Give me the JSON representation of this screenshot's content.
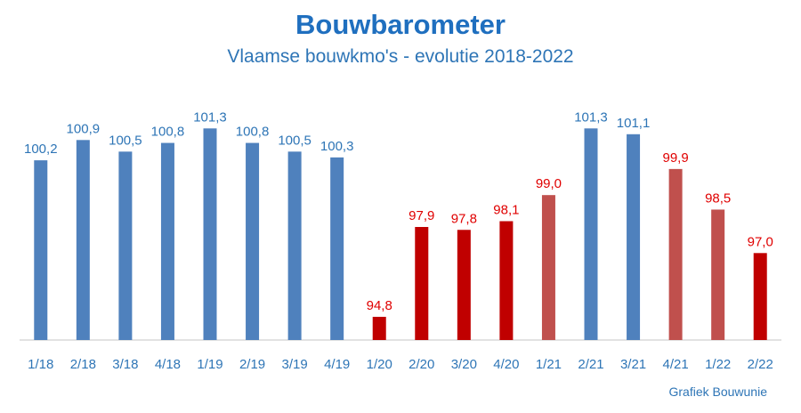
{
  "chart_data": {
    "type": "bar",
    "title": "Bouwbarometer",
    "subtitle": "Vlaamse bouwkmo's - evolutie 2018-2022",
    "categories": [
      "1/18",
      "2/18",
      "3/18",
      "4/18",
      "1/19",
      "2/19",
      "3/19",
      "4/19",
      "1/20",
      "2/20",
      "3/20",
      "4/20",
      "1/21",
      "2/21",
      "3/21",
      "4/21",
      "1/22",
      "2/22"
    ],
    "values": [
      100.2,
      100.9,
      100.5,
      100.8,
      101.3,
      100.8,
      100.5,
      100.3,
      94.8,
      97.9,
      97.8,
      98.1,
      99.0,
      101.3,
      101.1,
      99.9,
      98.5,
      97.0
    ],
    "data_labels": [
      "100,2",
      "100,9",
      "100,5",
      "100,8",
      "101,3",
      "100,8",
      "100,5",
      "100,3",
      "94,8",
      "97,9",
      "97,8",
      "98,1",
      "99,0",
      "101,3",
      "101,1",
      "99,9",
      "98,5",
      "97,0"
    ],
    "bar_colors": [
      "#4f81bd",
      "#4f81bd",
      "#4f81bd",
      "#4f81bd",
      "#4f81bd",
      "#4f81bd",
      "#4f81bd",
      "#4f81bd",
      "#c00000",
      "#c00000",
      "#c00000",
      "#c00000",
      "#c0504d",
      "#4f81bd",
      "#4f81bd",
      "#c0504d",
      "#c0504d",
      "#c00000"
    ],
    "label_colors": [
      "#2e75b6",
      "#2e75b6",
      "#2e75b6",
      "#2e75b6",
      "#2e75b6",
      "#2e75b6",
      "#2e75b6",
      "#2e75b6",
      "#e00000",
      "#e00000",
      "#e00000",
      "#e00000",
      "#e00000",
      "#2e75b6",
      "#2e75b6",
      "#e00000",
      "#e00000",
      "#e00000"
    ],
    "ylim": [
      94.0,
      101.8
    ],
    "grid": false,
    "legend": "none"
  },
  "colors": {
    "title": "#1f6fbf",
    "subtitle": "#2e75b6",
    "tick": "#2e75b6",
    "source": "#2e75b6",
    "axis": "#d9d9d9"
  },
  "source": "Grafiek Bouwunie"
}
